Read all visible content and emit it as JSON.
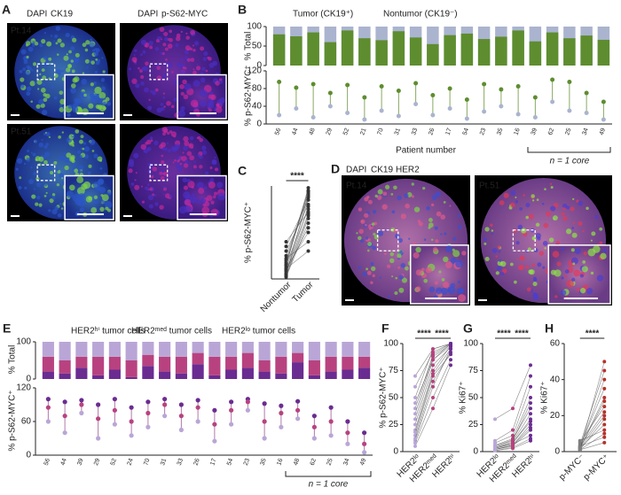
{
  "panel_A": {
    "letter": "A",
    "col1_stain": [
      "DAPI",
      "CK19"
    ],
    "col2_stain": [
      "DAPI",
      "p-S62-MYC"
    ],
    "samples": [
      "Pt.14",
      "Pt.51"
    ]
  },
  "panel_B": {
    "letter": "B",
    "legend_tumor": "Tumor (CK19⁺)",
    "legend_nontumor": "Nontumor (CK19⁻)",
    "tumor_color": "#5e8d2f",
    "nontumor_color": "#aab4cf",
    "top_ylabel": "% Total",
    "top_ylim": [
      0,
      100
    ],
    "top_yticks": [
      0,
      50,
      100
    ],
    "ylabel": "% p-S62-MYC⁺",
    "ylim": [
      0,
      120
    ],
    "yticks": [
      0,
      40,
      80,
      120
    ],
    "xlabel": "Patient number",
    "bracket_label": "n = 1 core",
    "categories": [
      "56",
      "44",
      "48",
      "29",
      "52",
      "21",
      "70",
      "31",
      "33",
      "26",
      "17",
      "54",
      "23",
      "35",
      "16",
      "39",
      "62",
      "25",
      "34",
      "49"
    ],
    "tumor_total": [
      80,
      75,
      85,
      60,
      90,
      70,
      65,
      88,
      72,
      55,
      78,
      82,
      68,
      74,
      90,
      62,
      85,
      70,
      77,
      66
    ],
    "tumor_myc": [
      95,
      82,
      90,
      70,
      88,
      60,
      85,
      75,
      92,
      65,
      80,
      55,
      90,
      78,
      85,
      60,
      100,
      95,
      70,
      50
    ],
    "nontumor_myc": [
      20,
      35,
      15,
      40,
      25,
      10,
      30,
      18,
      45,
      20,
      35,
      12,
      28,
      40,
      22,
      15,
      50,
      30,
      25,
      10
    ]
  },
  "panel_C": {
    "letter": "C",
    "ylabel": "% p-S62-MYC⁺",
    "categories": [
      "Nontumor",
      "Tumor"
    ],
    "significance": "****",
    "ylim": [
      0,
      100
    ],
    "series": [
      [
        5,
        10,
        15,
        20,
        2,
        8,
        25,
        30,
        12,
        18,
        3,
        6,
        22,
        14,
        9,
        35,
        40,
        11,
        4,
        16
      ],
      [
        90,
        85,
        75,
        95,
        60,
        70,
        88,
        80,
        50,
        92,
        65,
        78,
        40,
        98,
        55,
        85,
        72,
        30,
        68,
        94
      ]
    ]
  },
  "panel_D": {
    "letter": "D",
    "stains": [
      "DAPI",
      "CK19",
      "HER2"
    ],
    "samples": [
      "Pt.14",
      "Pt.51"
    ]
  },
  "panel_E": {
    "letter": "E",
    "top_ylabel": "% Total",
    "top_ylim": [
      0,
      100
    ],
    "top_yticks": [
      0,
      100
    ],
    "ylabel": "% p-S62-MYC⁺",
    "ylim": [
      0,
      120
    ],
    "yticks": [
      0,
      60,
      120
    ],
    "bracket_label": "n = 1 core",
    "categories": [
      "56",
      "44",
      "39",
      "29",
      "52",
      "24",
      "70",
      "31",
      "33",
      "26",
      "17",
      "54",
      "23",
      "35",
      "16",
      "48",
      "62",
      "25",
      "34",
      "49"
    ],
    "series": [
      {
        "name": "HER2ʰⁱ tumor cells",
        "color": "#6a2c91",
        "total": [
          20,
          15,
          30,
          10,
          25,
          5,
          35,
          20,
          15,
          40,
          10,
          25,
          30,
          20,
          15,
          45,
          10,
          20,
          25,
          30
        ],
        "myc": [
          100,
          95,
          98,
          90,
          100,
          85,
          95,
          100,
          90,
          98,
          80,
          95,
          100,
          92,
          88,
          96,
          70,
          85,
          60,
          40
        ]
      },
      {
        "name": "HER2ᵐᵉᵈ tumor cells",
        "color": "#b8427f",
        "total": [
          40,
          35,
          30,
          50,
          35,
          45,
          30,
          40,
          45,
          30,
          50,
          35,
          40,
          30,
          45,
          25,
          40,
          40,
          35,
          30
        ],
        "myc": [
          85,
          70,
          90,
          65,
          80,
          60,
          75,
          90,
          70,
          85,
          55,
          80,
          95,
          60,
          75,
          80,
          50,
          60,
          40,
          20
        ]
      },
      {
        "name": "HER2ˡᵒ tumor cells",
        "color": "#b9a6d6",
        "total": [
          40,
          50,
          40,
          40,
          40,
          50,
          35,
          40,
          40,
          30,
          40,
          40,
          30,
          50,
          40,
          30,
          50,
          40,
          40,
          40
        ],
        "myc": [
          60,
          40,
          75,
          30,
          55,
          35,
          50,
          70,
          45,
          60,
          25,
          55,
          80,
          30,
          50,
          65,
          30,
          35,
          20,
          5
        ]
      }
    ]
  },
  "panel_F": {
    "letter": "F",
    "ylabel": "% p-S62-MYC⁺",
    "ylim": [
      0,
      100
    ],
    "yticks": [
      0,
      25,
      50,
      75,
      100
    ],
    "categories": [
      "HER2ˡᵒ",
      "HER2ᵐᵉᵈ",
      "HER2ʰⁱ"
    ],
    "colors": [
      "#b9a6d6",
      "#b8427f",
      "#6a2c91"
    ],
    "significance": [
      "****",
      "****"
    ],
    "series": [
      [
        10,
        20,
        30,
        5,
        40,
        15,
        25,
        50,
        8,
        35,
        60,
        12,
        45,
        18,
        70
      ],
      [
        60,
        75,
        85,
        40,
        90,
        70,
        80,
        95,
        50,
        88,
        92,
        65,
        85,
        72,
        95
      ],
      [
        95,
        98,
        100,
        80,
        100,
        90,
        97,
        100,
        85,
        99,
        100,
        92,
        98,
        95,
        100
      ]
    ]
  },
  "panel_G": {
    "letter": "G",
    "ylabel": "% Ki67⁺",
    "ylim": [
      0,
      100
    ],
    "yticks": [
      0,
      25,
      50,
      75,
      100
    ],
    "categories": [
      "HER2ˡᵒ",
      "HER2ᵐᵉᵈ",
      "HER2ʰⁱ"
    ],
    "colors": [
      "#b9a6d6",
      "#b8427f",
      "#6a2c91"
    ],
    "significance": [
      "****",
      "****"
    ],
    "series": [
      [
        2,
        3,
        5,
        1,
        8,
        4,
        2,
        6,
        3,
        10,
        1,
        5,
        30,
        4,
        2
      ],
      [
        5,
        8,
        10,
        3,
        15,
        9,
        6,
        12,
        7,
        20,
        4,
        11,
        40,
        8,
        6
      ],
      [
        20,
        30,
        45,
        10,
        60,
        35,
        25,
        50,
        15,
        70,
        12,
        40,
        80,
        28,
        22
      ]
    ]
  },
  "panel_H": {
    "letter": "H",
    "ylabel": "% Ki67⁺",
    "ylim": [
      0,
      60
    ],
    "yticks": [
      0,
      20,
      40,
      60
    ],
    "categories": [
      "p-MYC⁻",
      "p-MYC⁺"
    ],
    "colors": [
      "#7f7f7f",
      "#b5332c"
    ],
    "significance": [
      "****"
    ],
    "series": [
      [
        1,
        2,
        3,
        1,
        4,
        2,
        5,
        1,
        3,
        2,
        6,
        2,
        1,
        3,
        2
      ],
      [
        10,
        20,
        35,
        5,
        45,
        15,
        25,
        50,
        8,
        30,
        12,
        40,
        18,
        22,
        28
      ]
    ]
  }
}
